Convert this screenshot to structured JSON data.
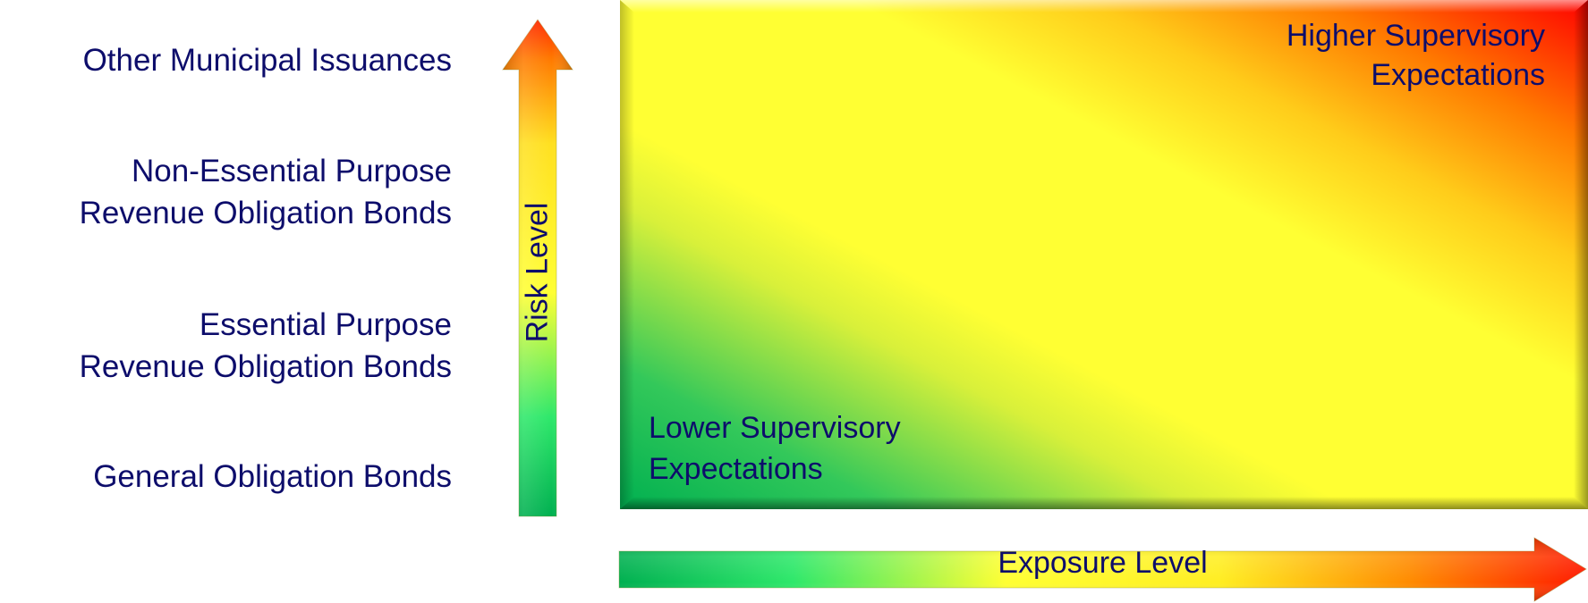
{
  "risk_categories": [
    {
      "lines": [
        "Other Municipal Issuances"
      ]
    },
    {
      "lines": [
        "Non-Essential Purpose",
        "Revenue Obligation Bonds"
      ]
    },
    {
      "lines": [
        "Essential Purpose",
        "Revenue Obligation Bonds"
      ]
    },
    {
      "lines": [
        "General Obligation Bonds"
      ]
    }
  ],
  "risk_axis": {
    "label": "Risk Level",
    "color_low": "#00b050",
    "color_mid": "#ffff33",
    "color_high": "#ff0000"
  },
  "exposure_axis": {
    "label": "Exposure Level",
    "color_low": "#00b050",
    "color_mid": "#ffff33",
    "color_high": "#ff0000"
  },
  "matrix": {
    "high_label": [
      "Higher Supervisory",
      "Expectations"
    ],
    "low_label": [
      "Lower Supervisory",
      "Expectations"
    ],
    "colors": {
      "green": "#00b050",
      "yellow": "#ffff33",
      "orange": "#ffa500",
      "red": "#ff0000"
    }
  },
  "text_color": "#0d0d6b"
}
